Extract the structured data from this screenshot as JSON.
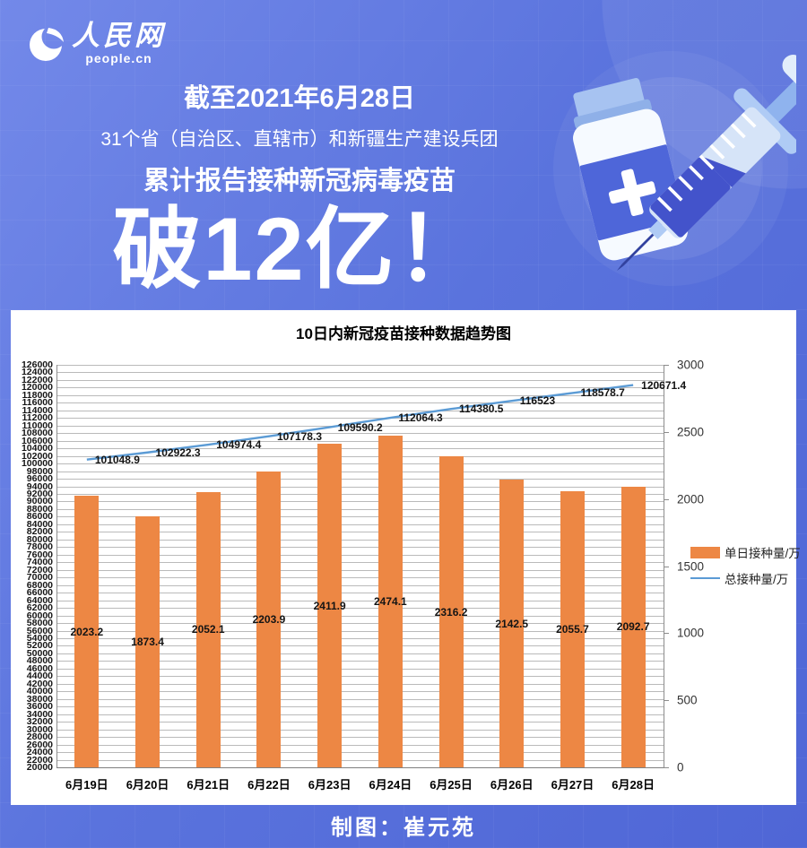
{
  "page": {
    "logo": {
      "brand_cn": "人民网",
      "brand_en": "people.cn"
    },
    "header": {
      "line1": "截至2021年6月28日",
      "line2": "31个省（自治区、直辖市）和新疆生产建设兵团",
      "line3": "累计报告接种新冠病毒疫苗",
      "headline": "破12亿！"
    },
    "footer": {
      "credit": "制图：崔元苑"
    }
  },
  "colors": {
    "background_top": "#7389E9",
    "background_bottom": "#4F66D6",
    "panel": "#FFFFFF",
    "bar": "#ED8744",
    "line": "#5B9BD5",
    "gridline": "#BABABA",
    "axis": "#7F7F7F",
    "text_on_blue": "#FFFFFF",
    "chart_text": "#141414"
  },
  "chart_data": {
    "type": "combo-bar-line",
    "title": "10日内新冠疫苗接种数据趋势图",
    "categories": [
      "6月19日",
      "6月20日",
      "6月21日",
      "6月22日",
      "6月23日",
      "6月24日",
      "6月25日",
      "6月26日",
      "6月27日",
      "6月28日"
    ],
    "series": [
      {
        "name": "单日接种量/万",
        "type": "bar",
        "axis": "right",
        "color": "#ED8744",
        "values": [
          2023.2,
          1873.4,
          2052.1,
          2203.9,
          2411.9,
          2474.1,
          2316.2,
          2142.5,
          2055.7,
          2092.7
        ]
      },
      {
        "name": "总接种量/万",
        "type": "line",
        "axis": "left",
        "color": "#5B9BD5",
        "values": [
          101048.9,
          102922.3,
          104974.4,
          107178.3,
          109590.2,
          112064.3,
          114380.5,
          116523,
          118578.7,
          120671.4
        ]
      }
    ],
    "left_axis": {
      "min": 20000,
      "max": 126000,
      "step": 2000,
      "ticks": [
        20000,
        22000,
        24000,
        26000,
        28000,
        30000,
        32000,
        34000,
        36000,
        38000,
        40000,
        42000,
        44000,
        46000,
        48000,
        50000,
        52000,
        54000,
        56000,
        58000,
        60000,
        62000,
        64000,
        66000,
        68000,
        70000,
        72000,
        74000,
        76000,
        78000,
        80000,
        82000,
        84000,
        86000,
        88000,
        90000,
        92000,
        94000,
        96000,
        98000,
        100000,
        102000,
        104000,
        106000,
        108000,
        110000,
        112000,
        114000,
        116000,
        118000,
        120000,
        122000,
        124000,
        126000
      ]
    },
    "right_axis": {
      "min": 0,
      "max": 3000,
      "step": 500,
      "ticks": [
        0,
        500,
        1000,
        1500,
        2000,
        2500,
        3000
      ]
    },
    "legend_position": "right",
    "grid": true,
    "xlabel": "",
    "ylabel_left": "总接种量/万",
    "ylabel_right": "单日接种量/万"
  }
}
